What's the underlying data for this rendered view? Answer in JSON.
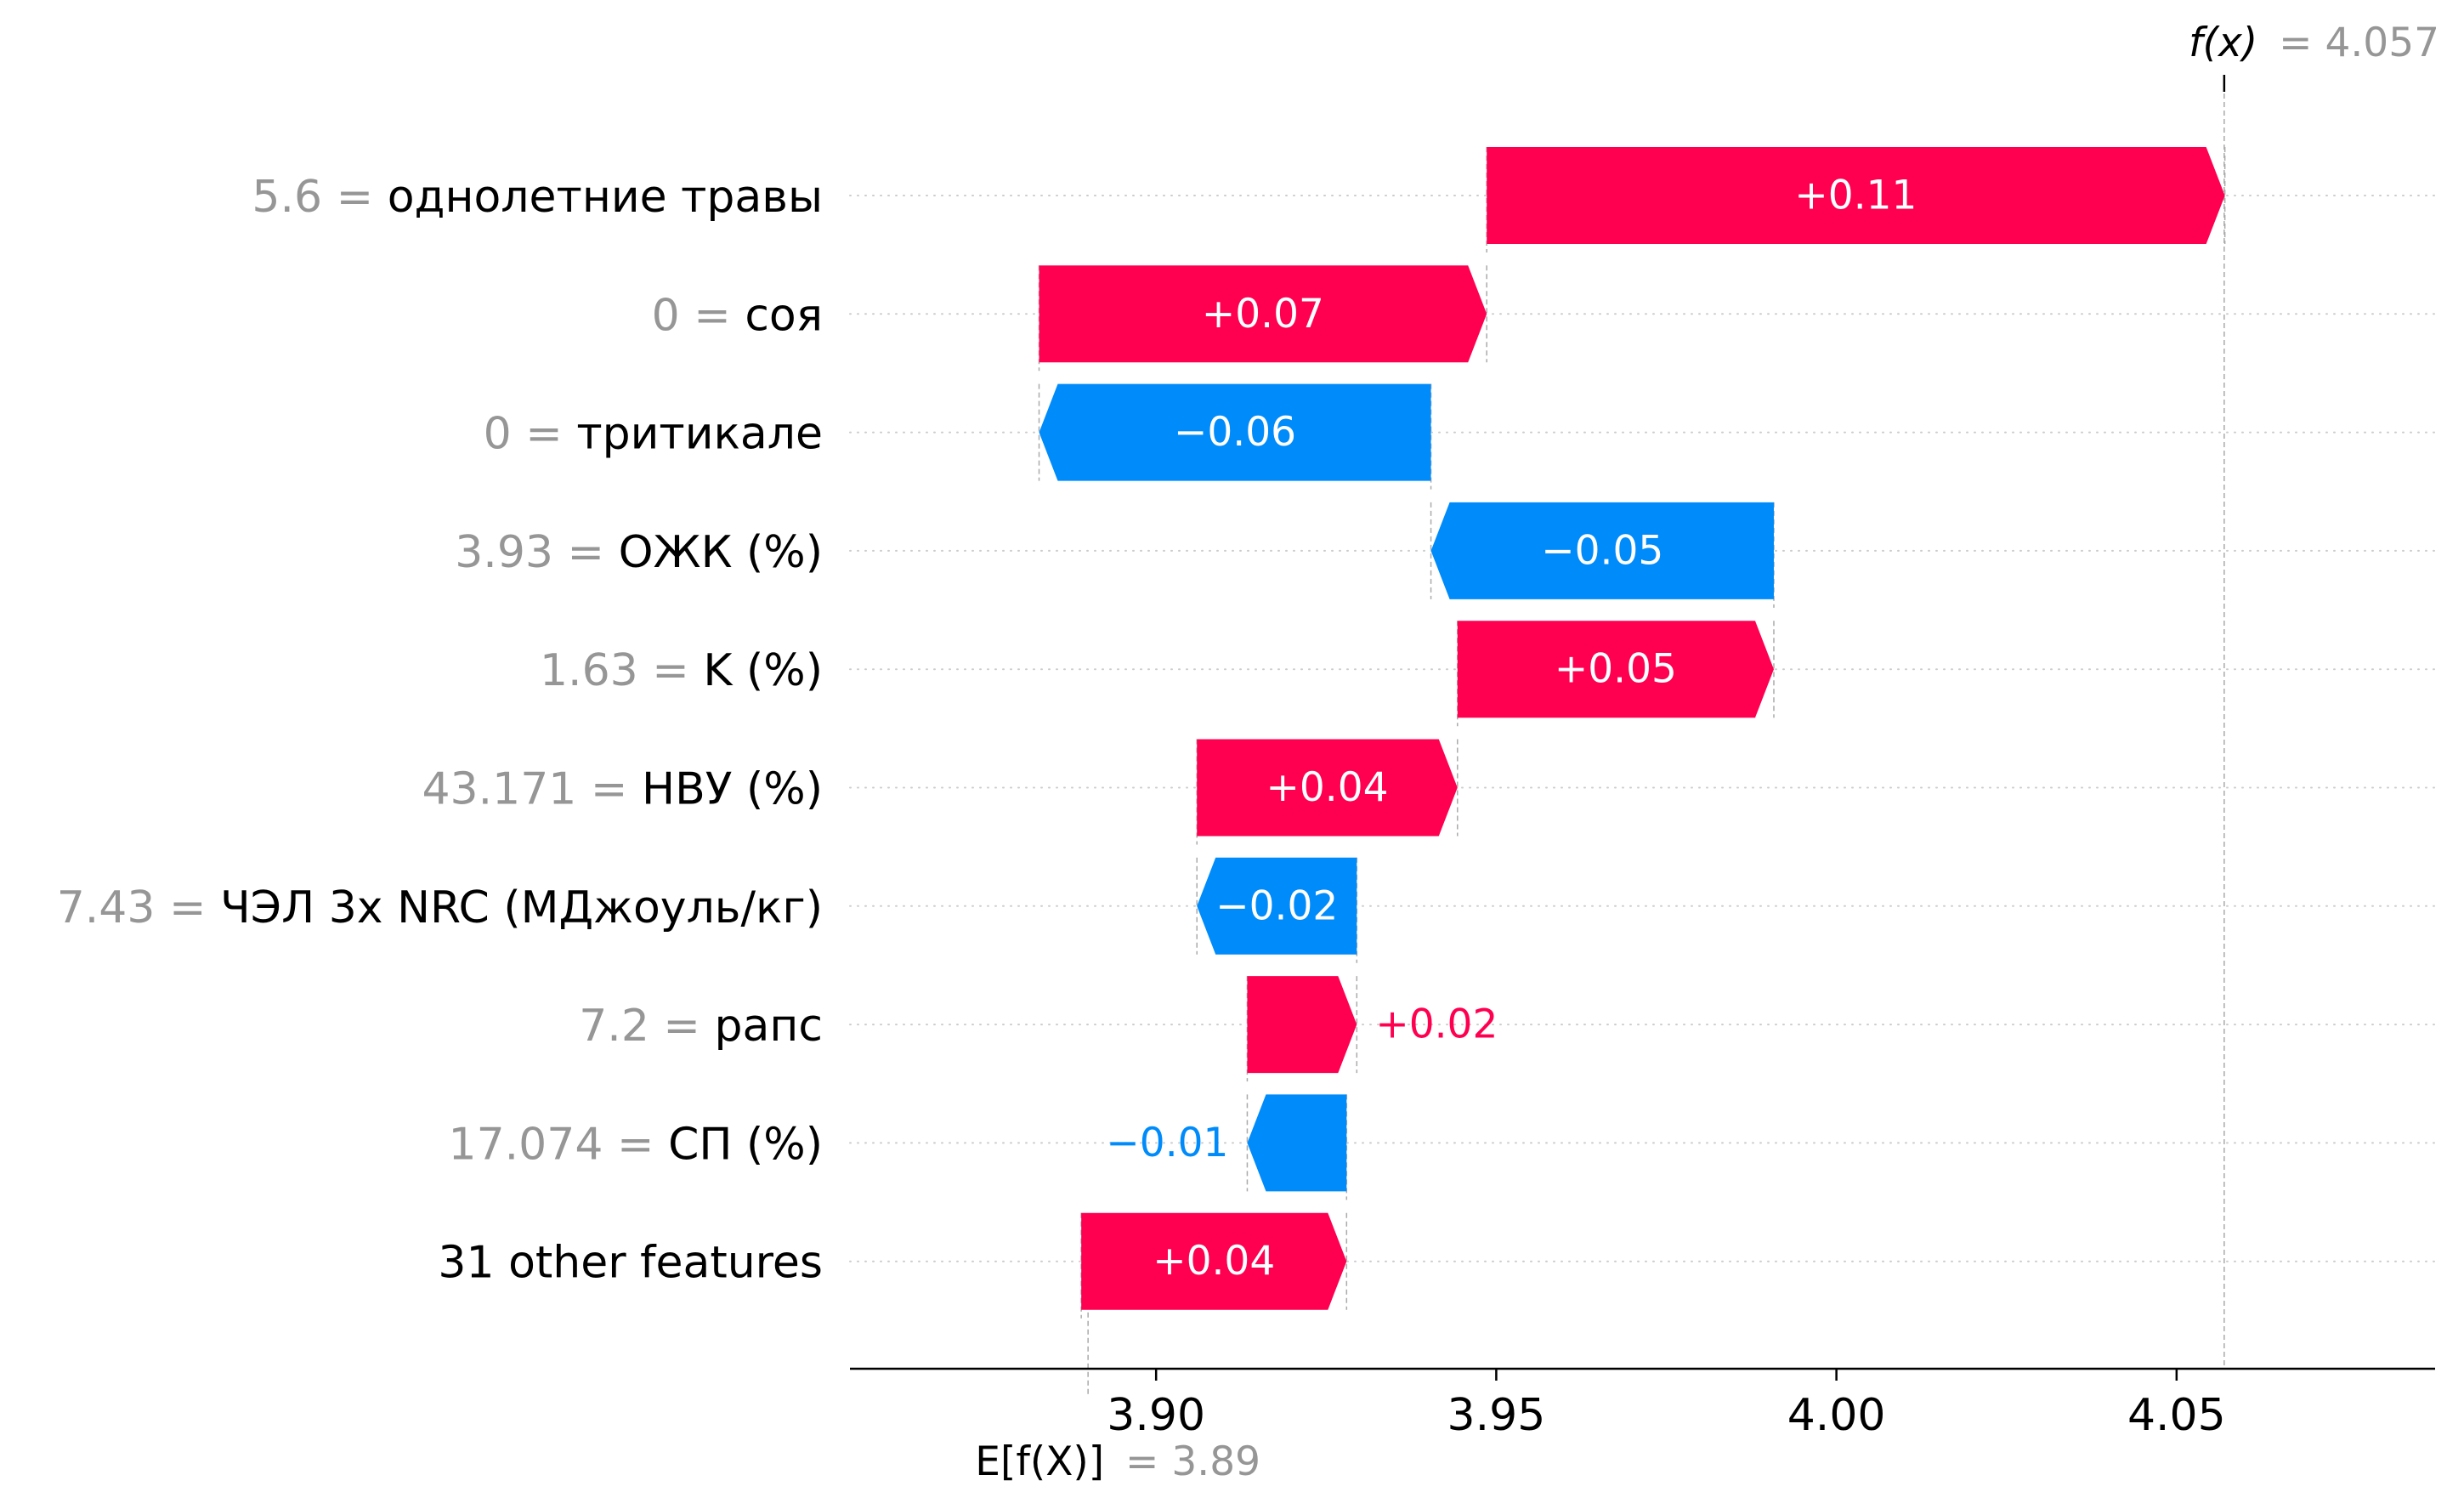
{
  "chart_data": {
    "type": "waterfall",
    "base_value": 3.89,
    "base_label": "E[f(X)]",
    "base_value_text": "= 3.89",
    "output_value": 4.057,
    "output_label": "f(x)",
    "output_value_text": "= 4.057",
    "xlim": [
      3.855,
      4.088
    ],
    "xticks": [
      3.9,
      3.95,
      4.0,
      4.05
    ],
    "xtick_labels": [
      "3.90",
      "3.95",
      "4.00",
      "4.05"
    ],
    "features": [
      {
        "value_text": "5.6 =",
        "name": "однолетние травы",
        "shap": 0.1085,
        "label": "+0.11",
        "start": 3.9486
      },
      {
        "value_text": "0 =",
        "name": "соя",
        "shap": 0.0658,
        "label": "+0.07",
        "start": 3.8828
      },
      {
        "value_text": "0 =",
        "name": "тритикале",
        "shap": -0.0576,
        "label": "−0.06",
        "start": 3.9404
      },
      {
        "value_text": "3.93 =",
        "name": "ОЖК (%)",
        "shap": -0.0504,
        "label": "−0.05",
        "start": 3.9908
      },
      {
        "value_text": "1.63 =",
        "name": "K (%)",
        "shap": 0.0465,
        "label": "+0.05",
        "start": 3.9443
      },
      {
        "value_text": "43.171 =",
        "name": "НВУ (%)",
        "shap": 0.0383,
        "label": "+0.04",
        "start": 3.906
      },
      {
        "value_text": "7.43 =",
        "name": "ЧЭЛ 3х NRC (МДжоуль/кг)",
        "shap": -0.0235,
        "label": "−0.02",
        "start": 3.9295
      },
      {
        "value_text": "7.2 =",
        "name": "рапс",
        "shap": 0.0161,
        "label": "+0.02",
        "start": 3.9134
      },
      {
        "value_text": "17.074 =",
        "name": "СП (%)",
        "shap": -0.0146,
        "label": "−0.01",
        "start": 3.928
      },
      {
        "value_text": "",
        "name": "31 other features",
        "shap": 0.039,
        "label": "+0.04",
        "start": 3.889
      }
    ],
    "colors": {
      "positive": "#ff0051",
      "negative": "#008bfb",
      "value_text": "#969696"
    }
  }
}
